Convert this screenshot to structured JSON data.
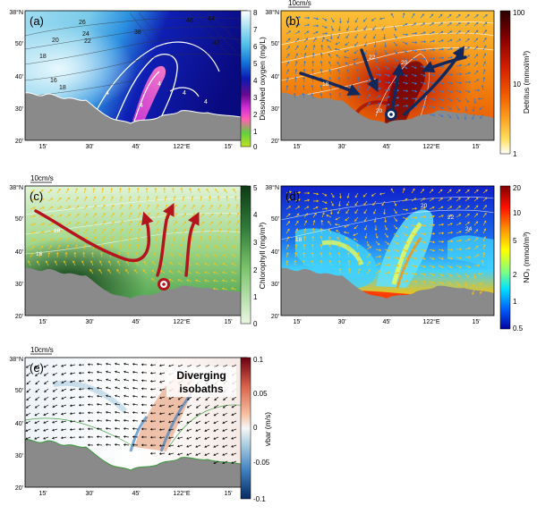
{
  "colors": {
    "land": "#8a8a8a",
    "arrow_b": "#3a78c8",
    "arrow_c": "#f2c21a",
    "arrow_e": "#111111",
    "big_arrow_b": "#13285a",
    "big_arrow_c": "#b4141e",
    "contour": "#ffffff"
  },
  "axes": {
    "lat_ticks": [
      "38°N",
      "50'",
      "40'",
      "30'",
      "20'"
    ],
    "lon_ticks": [
      "15'",
      "30'",
      "45'",
      "122°E",
      "15'"
    ]
  },
  "scale_label": "10cm/s",
  "panels": [
    {
      "id": "a",
      "label": "(a)",
      "variable": "Dissolved oxygen",
      "colorbar_label": "Dissolved oxygen (mg/L)",
      "colorbar_ticks": [
        "8",
        "7",
        "6",
        "5",
        "4",
        "3",
        "2",
        "1",
        "0"
      ],
      "colormap": [
        "#ffffff",
        "#a7e1f2",
        "#4fc0e8",
        "#1475d8",
        "#0a1ab0",
        "#0a0a80",
        "#d830d8",
        "#ff60b0",
        "#60d040",
        "#c0e020"
      ],
      "isobath_labels": [
        "26",
        "24",
        "22",
        "20",
        "18",
        "16",
        "18",
        "38",
        "42",
        "46",
        "44",
        "4",
        "4",
        "4",
        "4",
        "4"
      ]
    },
    {
      "id": "b",
      "label": "(b)",
      "variable": "Detritus",
      "colorbar_label": "Detritus (mmol/m³)",
      "colorbar_ticks": [
        "100",
        "10",
        "1"
      ],
      "colormap": [
        "#2a0000",
        "#8a0000",
        "#d42000",
        "#f26000",
        "#fba020",
        "#fde060",
        "#ffffff"
      ],
      "isobath_labels": [
        "20",
        "20",
        "22",
        "18"
      ]
    },
    {
      "id": "c",
      "label": "(c)",
      "variable": "Chlorophyll",
      "colorbar_label": "Chlorophyll (mg/m³)",
      "colorbar_ticks": [
        "5",
        "4",
        "3",
        "2",
        "1",
        "0"
      ],
      "colormap": [
        "#0e3a16",
        "#1f6a2e",
        "#3f9a46",
        "#7bc46c",
        "#b9e2a6",
        "#eaf7e2"
      ],
      "isobath_labels": [
        "18",
        "16"
      ]
    },
    {
      "id": "d",
      "label": "(d)",
      "variable": "NO3",
      "colorbar_label": "NO₃ (mmol/m³)",
      "colorbar_ticks": [
        "20",
        "10",
        "5",
        "2",
        "1",
        "0.5"
      ],
      "colormap": [
        "#800000",
        "#ff1000",
        "#ff9000",
        "#ffff00",
        "#80ff80",
        "#00e0ff",
        "#0060ff",
        "#0000a0"
      ],
      "isobath_labels": [
        "20",
        "22",
        "24",
        "18"
      ]
    },
    {
      "id": "e",
      "label": "(e)",
      "variable": "vbar",
      "colorbar_label": "vbar (m/s)",
      "colorbar_ticks": [
        "0.1",
        "0.05",
        "0",
        "-0.05",
        "-0.1"
      ],
      "colormap": [
        "#6a0010",
        "#d8604a",
        "#f7c0a0",
        "#f7f7f7",
        "#a8cce0",
        "#3f80c0",
        "#052a60"
      ],
      "annotation": "Diverging isobaths",
      "isobath_labels": []
    }
  ]
}
